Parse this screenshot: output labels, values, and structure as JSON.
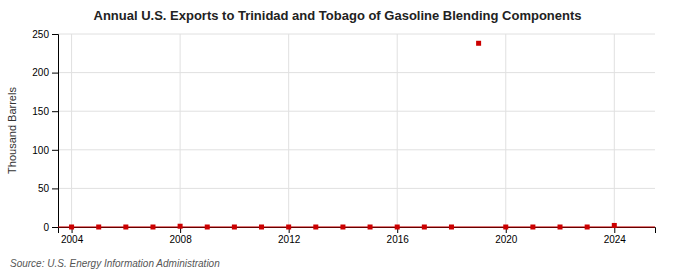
{
  "chart_data": {
    "type": "scatter",
    "title": "Annual U.S. Exports to Trinidad and Tobago of Gasoline Blending Components",
    "y_label": "Thousand Barrels",
    "source": "Source: U.S. Energy Information Administration",
    "x": [
      2004,
      2005,
      2006,
      2007,
      2008,
      2009,
      2010,
      2011,
      2012,
      2013,
      2014,
      2015,
      2016,
      2017,
      2018,
      2019,
      2020,
      2021,
      2022,
      2023,
      2024
    ],
    "values": [
      0,
      0,
      0,
      0,
      1,
      0,
      0,
      0,
      0,
      0,
      0,
      0,
      0,
      0,
      0,
      238,
      0,
      0,
      0,
      0,
      2
    ],
    "baseline": 0,
    "color": "#cc0000",
    "marker": "square",
    "xlim": [
      2003.5,
      2025.5
    ],
    "xticks": [
      2004,
      2008,
      2012,
      2016,
      2020,
      2024
    ],
    "ylim": [
      0,
      250
    ],
    "yticks": [
      0,
      50,
      100,
      150,
      200,
      250
    ],
    "grid": true
  }
}
